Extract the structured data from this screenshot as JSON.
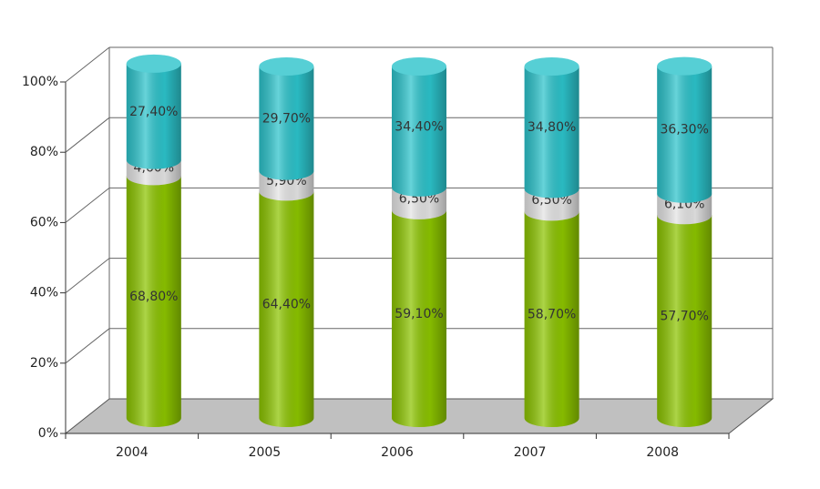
{
  "chart_data": {
    "type": "bar3d_stacked",
    "categories": [
      "2004",
      "2005",
      "2006",
      "2007",
      "2008"
    ],
    "series": [
      {
        "color": "#8cc400",
        "values": [
          68.8,
          64.4,
          59.1,
          58.7,
          57.7
        ],
        "value_labels": [
          "68,80%",
          "64,40%",
          "59,10%",
          "58,70%",
          "57,70%"
        ]
      },
      {
        "color": "#e4e4e4",
        "values": [
          4.6,
          5.9,
          6.5,
          6.5,
          6.1
        ],
        "value_labels": [
          "4,60%",
          "5,90%",
          "6,50%",
          "6,50%",
          "6,10%"
        ]
      },
      {
        "color": "#2cc3cb",
        "values": [
          27.4,
          29.7,
          34.4,
          34.8,
          36.3
        ],
        "value_labels": [
          "27,40%",
          "29,70%",
          "34,40%",
          "34,80%",
          "36,30%"
        ]
      }
    ],
    "ylim": [
      0,
      100
    ],
    "yticks": [
      {
        "value": 0,
        "label": "0%"
      },
      {
        "value": 20,
        "label": "20%"
      },
      {
        "value": 40,
        "label": "40%"
      },
      {
        "value": 60,
        "label": "60%"
      },
      {
        "value": 80,
        "label": "80%"
      },
      {
        "value": 100,
        "label": "100%"
      }
    ],
    "grid": true
  }
}
